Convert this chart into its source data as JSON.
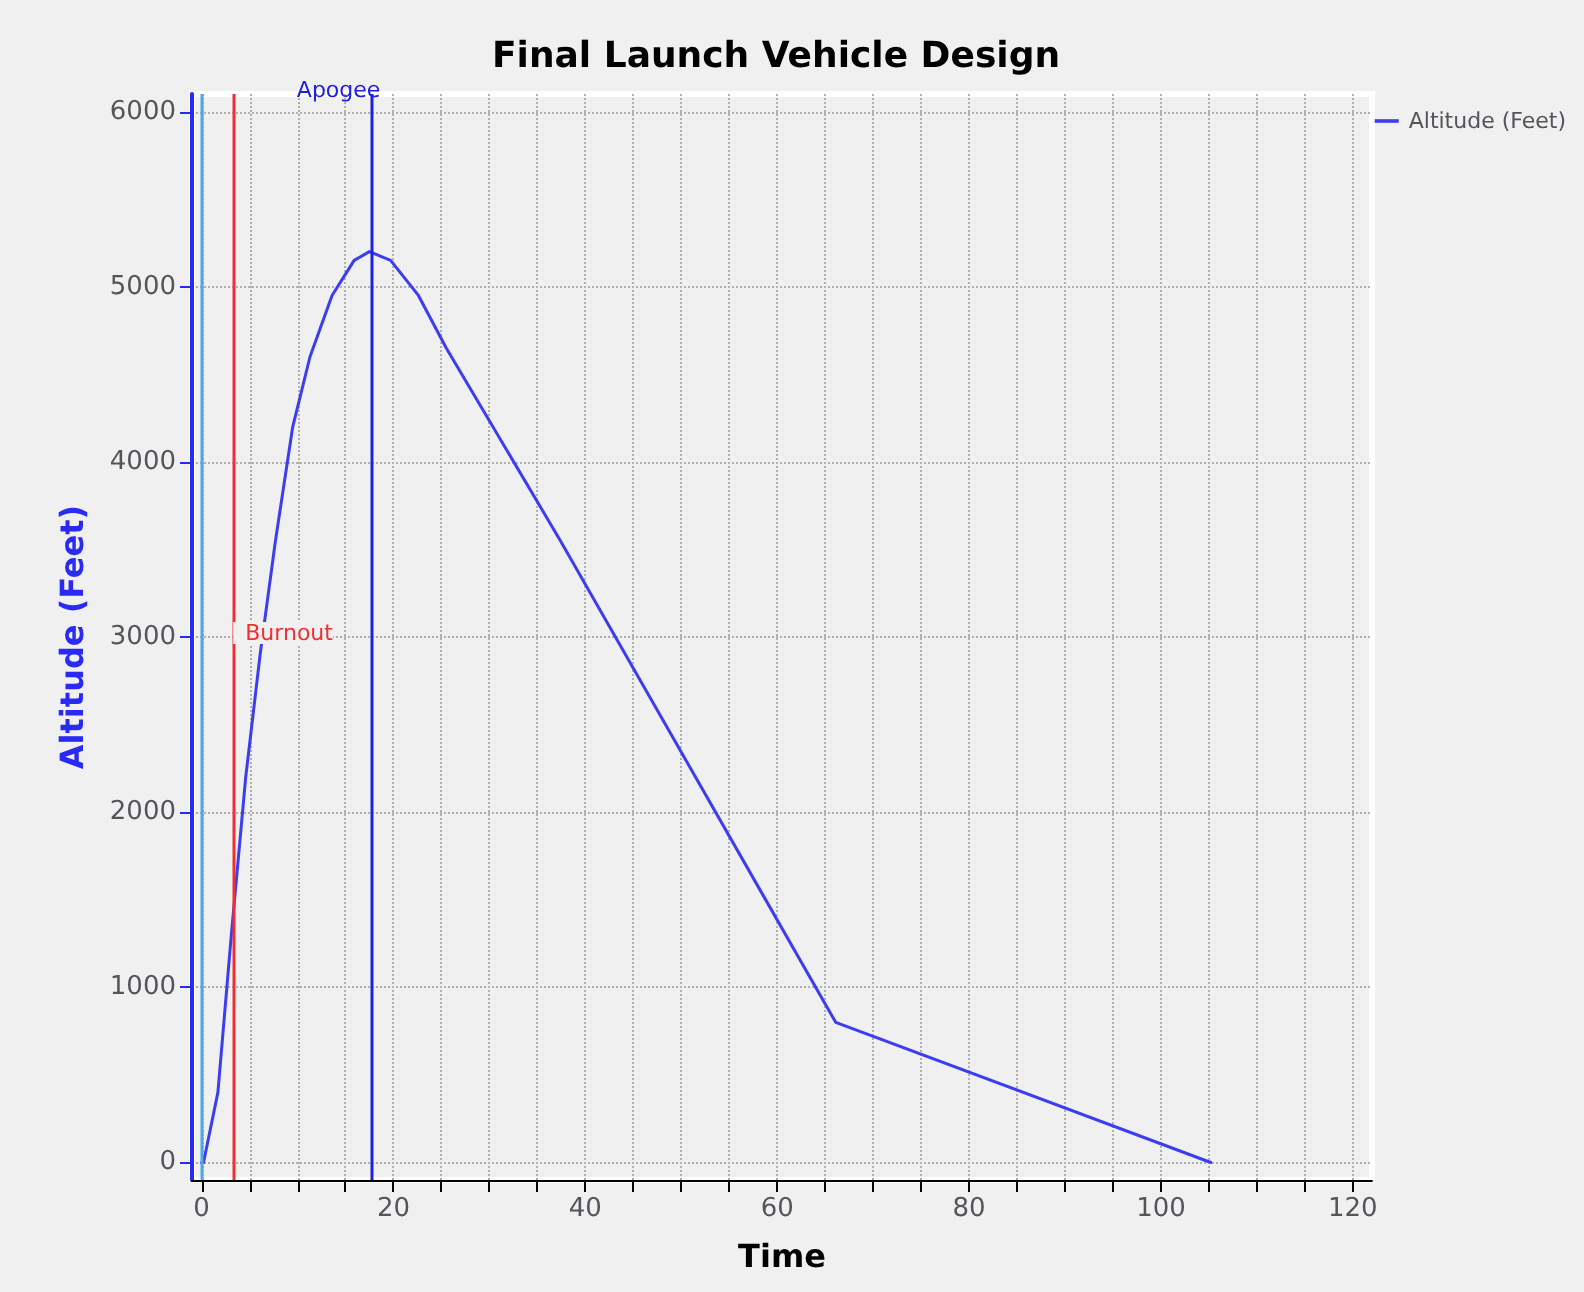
{
  "chart_data": {
    "type": "line",
    "title": "Final Launch Vehicle Design",
    "xlabel": "Time",
    "ylabel": "Altitude (Feet)",
    "series": [
      {
        "name": "Altitude (Feet)",
        "color": "#3c3cf0",
        "x": [
          0,
          0.2,
          1.7,
          3.1,
          4.6,
          6.1,
          7.7,
          9.5,
          11.3,
          13.6,
          15.9,
          17.5,
          19.7,
          22.6,
          25.5,
          37.4,
          66.1,
          105.2
        ],
        "values": [
          0,
          0,
          400,
          1300,
          2200,
          2900,
          3550,
          4200,
          4600,
          4950,
          5150,
          5200,
          5150,
          4950,
          4650,
          3550,
          800,
          0
        ]
      }
    ],
    "xlim": [
      -1,
      122
    ],
    "xticks": [
      0,
      {
        "value": 5,
        "label": null
      },
      {
        "value": 10,
        "label": null
      },
      {
        "value": 15,
        "label": null
      },
      20,
      {
        "value": 25,
        "label": null
      },
      {
        "value": 30,
        "label": null
      },
      {
        "value": 35,
        "label": null
      },
      40,
      {
        "value": 45,
        "label": null
      },
      {
        "value": 50,
        "label": null
      },
      {
        "value": 55,
        "label": null
      },
      60,
      {
        "value": 65,
        "label": null
      },
      {
        "value": 70,
        "label": null
      },
      {
        "value": 75,
        "label": null
      },
      80,
      {
        "value": 85,
        "label": null
      },
      {
        "value": 90,
        "label": null
      },
      {
        "value": 95,
        "label": null
      },
      100,
      {
        "value": 105,
        "label": null
      },
      {
        "value": 110,
        "label": null
      },
      {
        "value": 115,
        "label": null
      },
      120
    ],
    "ylim": [
      -100,
      6100
    ],
    "yticks": [
      0,
      1000,
      2000,
      3000,
      4000,
      5000,
      6000
    ],
    "ref_lines": [
      {
        "axis": "x",
        "value": 0,
        "color": "#4da6e8"
      },
      {
        "axis": "x",
        "value": 3.3,
        "label": "Burnout",
        "color": "#f03030"
      },
      {
        "axis": "x",
        "value": 17.8,
        "label": "Apogee",
        "color": "#2020e0"
      }
    ],
    "grid": true,
    "legend": "top right",
    "marker": "none",
    "line_style": "solid"
  }
}
